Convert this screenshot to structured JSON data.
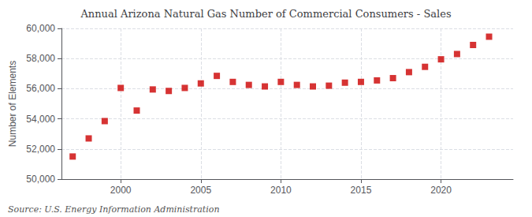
{
  "chart_data": {
    "type": "scatter",
    "title": "Annual Arizona Natural Gas Number of Commercial Consumers - Sales",
    "ylabel": "Number of Elements",
    "annotations": [
      "Source: U.S. Energy Information Administration"
    ],
    "color": "#cc0000",
    "marker": "square",
    "grid": true,
    "xlim": [
      1996.3,
      2024.5
    ],
    "xticks": [
      2000,
      2005,
      2010,
      2015,
      2020
    ],
    "ylim": [
      50000,
      60000
    ],
    "yticks": [
      {
        "value": 50000,
        "label": "50,000"
      },
      {
        "value": 52000,
        "label": "52,000"
      },
      {
        "value": 54000,
        "label": "54,000"
      },
      {
        "value": 56000,
        "label": "56,000"
      },
      {
        "value": 58000,
        "label": "58,000"
      },
      {
        "value": 60000,
        "label": "60,000"
      }
    ],
    "x": [
      1997,
      1998,
      1999,
      2000,
      2001,
      2002,
      2003,
      2004,
      2005,
      2006,
      2007,
      2008,
      2009,
      2010,
      2011,
      2012,
      2013,
      2014,
      2015,
      2016,
      2017,
      2018,
      2019,
      2020,
      2021,
      2022,
      2023
    ],
    "values": [
      51500,
      52700,
      53850,
      56050,
      54550,
      55950,
      55850,
      56050,
      56350,
      56850,
      56450,
      56250,
      56150,
      56450,
      56250,
      56150,
      56200,
      56400,
      56450,
      56550,
      56700,
      57100,
      57450,
      57950,
      58300,
      58900,
      59450
    ]
  }
}
